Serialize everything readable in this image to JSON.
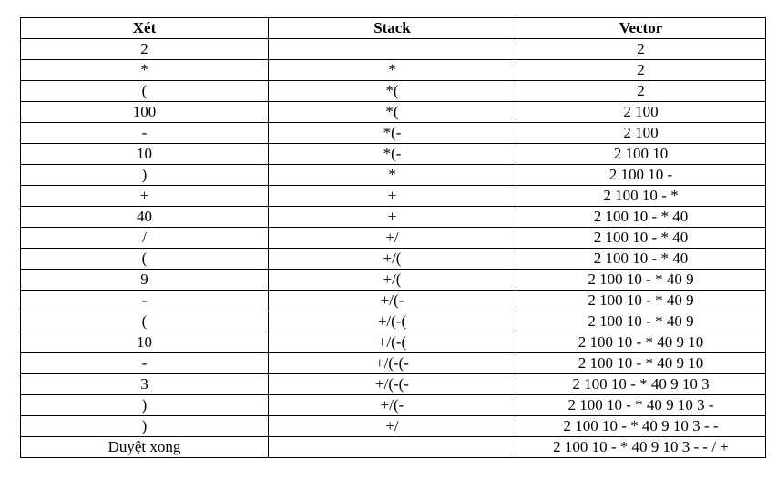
{
  "table": {
    "headers": [
      "Xét",
      "Stack",
      "Vector"
    ],
    "rows": [
      [
        "2",
        "",
        "2"
      ],
      [
        "*",
        "*",
        "2"
      ],
      [
        "(",
        "*(",
        "2"
      ],
      [
        "100",
        "*(",
        "2 100"
      ],
      [
        "-",
        "*(-",
        "2 100"
      ],
      [
        "10",
        "*(-",
        "2 100 10"
      ],
      [
        ")",
        "*",
        "2 100 10 -"
      ],
      [
        "+",
        "+",
        "2 100 10 - *"
      ],
      [
        "40",
        "+",
        "2 100 10 - * 40"
      ],
      [
        "/",
        "+/",
        "2 100 10 - * 40"
      ],
      [
        "(",
        "+/(",
        "2 100 10 - * 40"
      ],
      [
        "9",
        "+/(",
        "2 100 10 - * 40 9"
      ],
      [
        "-",
        "+/(-",
        "2 100 10 - * 40 9"
      ],
      [
        "(",
        "+/(-(",
        "2 100 10 - * 40 9"
      ],
      [
        "10",
        "+/(-(",
        "2 100 10 - * 40 9 10"
      ],
      [
        "-",
        "+/(-(-",
        "2 100 10 - * 40 9 10"
      ],
      [
        "3",
        "+/(-(-",
        "2 100 10 - * 40 9 10 3"
      ],
      [
        ")",
        "+/(-",
        "2 100 10 - * 40 9 10 3 -"
      ],
      [
        ")",
        "+/",
        "2 100 10 - * 40 9 10 3 - -"
      ],
      [
        "Duyệt xong",
        "",
        "2 100 10 - * 40 9 10 3 - - / +"
      ]
    ]
  }
}
